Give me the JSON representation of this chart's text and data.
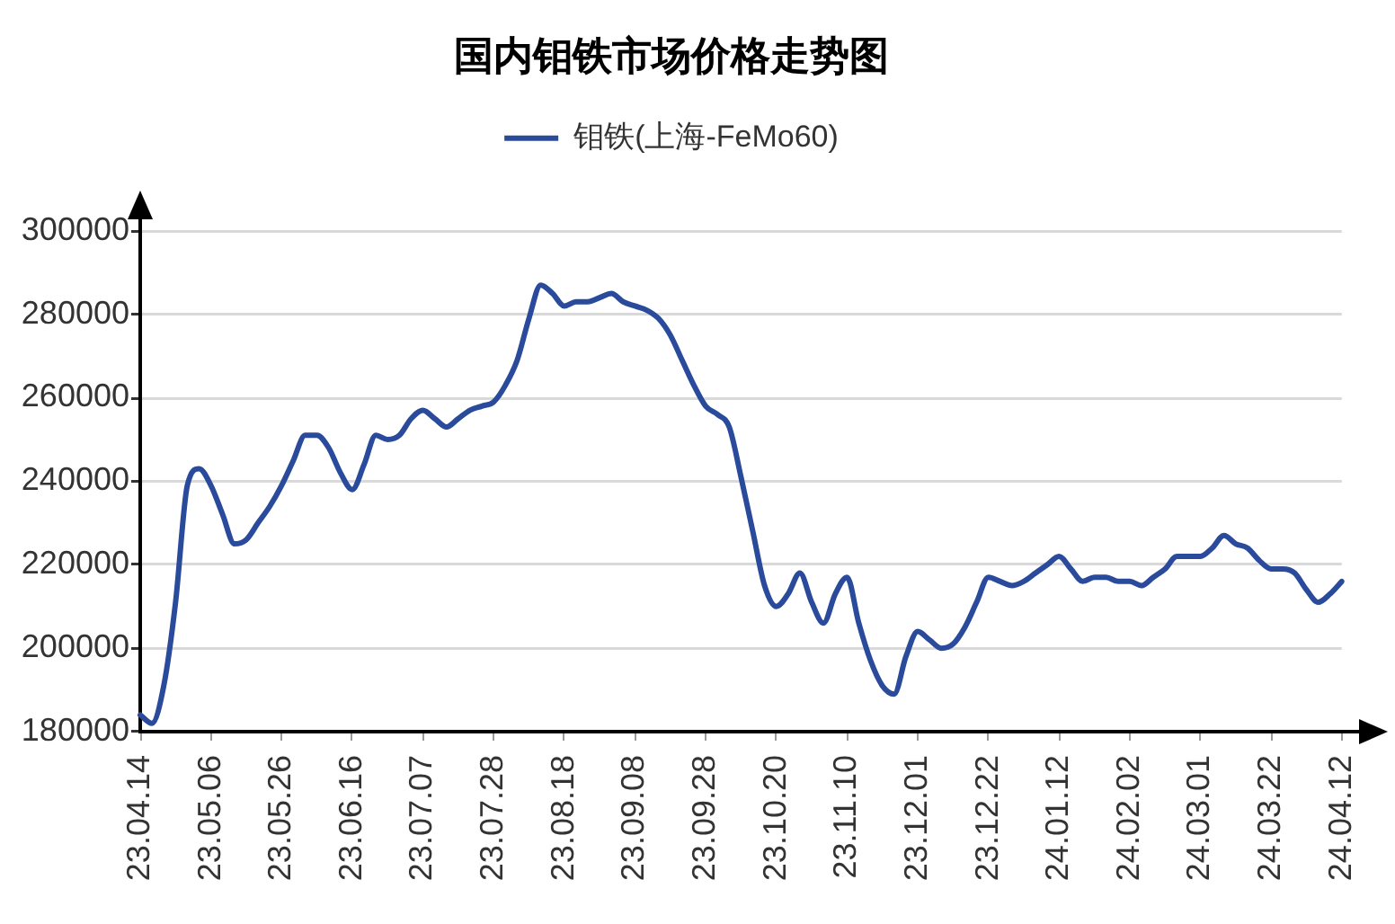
{
  "chart_data": {
    "type": "line",
    "title": "国内钼铁市场价格走势图",
    "categories": [
      "23.04.14",
      null,
      null,
      null,
      null,
      null,
      "23.05.06",
      null,
      null,
      null,
      null,
      null,
      "23.05.26",
      null,
      null,
      null,
      null,
      null,
      "23.06.16",
      null,
      null,
      null,
      null,
      null,
      "23.07.07",
      null,
      null,
      null,
      null,
      null,
      "23.07.28",
      null,
      null,
      null,
      null,
      null,
      "23.08.18",
      null,
      null,
      null,
      null,
      null,
      "23.09.08",
      null,
      null,
      null,
      null,
      null,
      "23.09.28",
      null,
      null,
      null,
      null,
      null,
      "23.10.20",
      null,
      null,
      null,
      null,
      null,
      "23.11.10",
      null,
      null,
      null,
      null,
      null,
      "23.12.01",
      null,
      null,
      null,
      null,
      null,
      "23.12.22",
      null,
      null,
      null,
      null,
      null,
      "24.01.12",
      null,
      null,
      null,
      null,
      null,
      "24.02.02",
      null,
      null,
      null,
      null,
      null,
      "24.03.01",
      null,
      null,
      null,
      null,
      null,
      "24.03.22",
      null,
      null,
      null,
      null,
      null,
      "24.04.12"
    ],
    "series": [
      {
        "name": "钼铁(上海-FeMo60)",
        "color": "#2a4b9b",
        "values": [
          184000,
          182000,
          191000,
          211000,
          239000,
          243000,
          239000,
          232000,
          225000,
          226000,
          230000,
          234000,
          239000,
          245000,
          251000,
          251000,
          248000,
          242000,
          238000,
          244000,
          251000,
          250000,
          251000,
          255000,
          257000,
          255000,
          253000,
          255000,
          257000,
          258000,
          259000,
          263000,
          269000,
          279000,
          287000,
          285000,
          282000,
          283000,
          283000,
          284000,
          285000,
          283000,
          282000,
          281000,
          279000,
          275000,
          269000,
          263000,
          258000,
          256000,
          253000,
          241000,
          228000,
          215000,
          210000,
          213000,
          218000,
          211000,
          206000,
          213000,
          217000,
          206000,
          197000,
          191000,
          189000,
          198000,
          204000,
          202000,
          200000,
          201000,
          205000,
          211000,
          217000,
          216000,
          215000,
          216000,
          218000,
          220000,
          222000,
          219000,
          216000,
          217000,
          217000,
          216000,
          216000,
          215000,
          217000,
          219000,
          222000,
          222000,
          222000,
          224000,
          227000,
          225000,
          224000,
          221000,
          219000,
          219000,
          218000,
          214000,
          211000,
          213000,
          216000
        ]
      }
    ],
    "ylim": [
      180000,
      300000
    ],
    "yticks": [
      180000,
      200000,
      220000,
      240000,
      260000,
      280000,
      300000
    ],
    "grid": "y",
    "legend": "top"
  }
}
